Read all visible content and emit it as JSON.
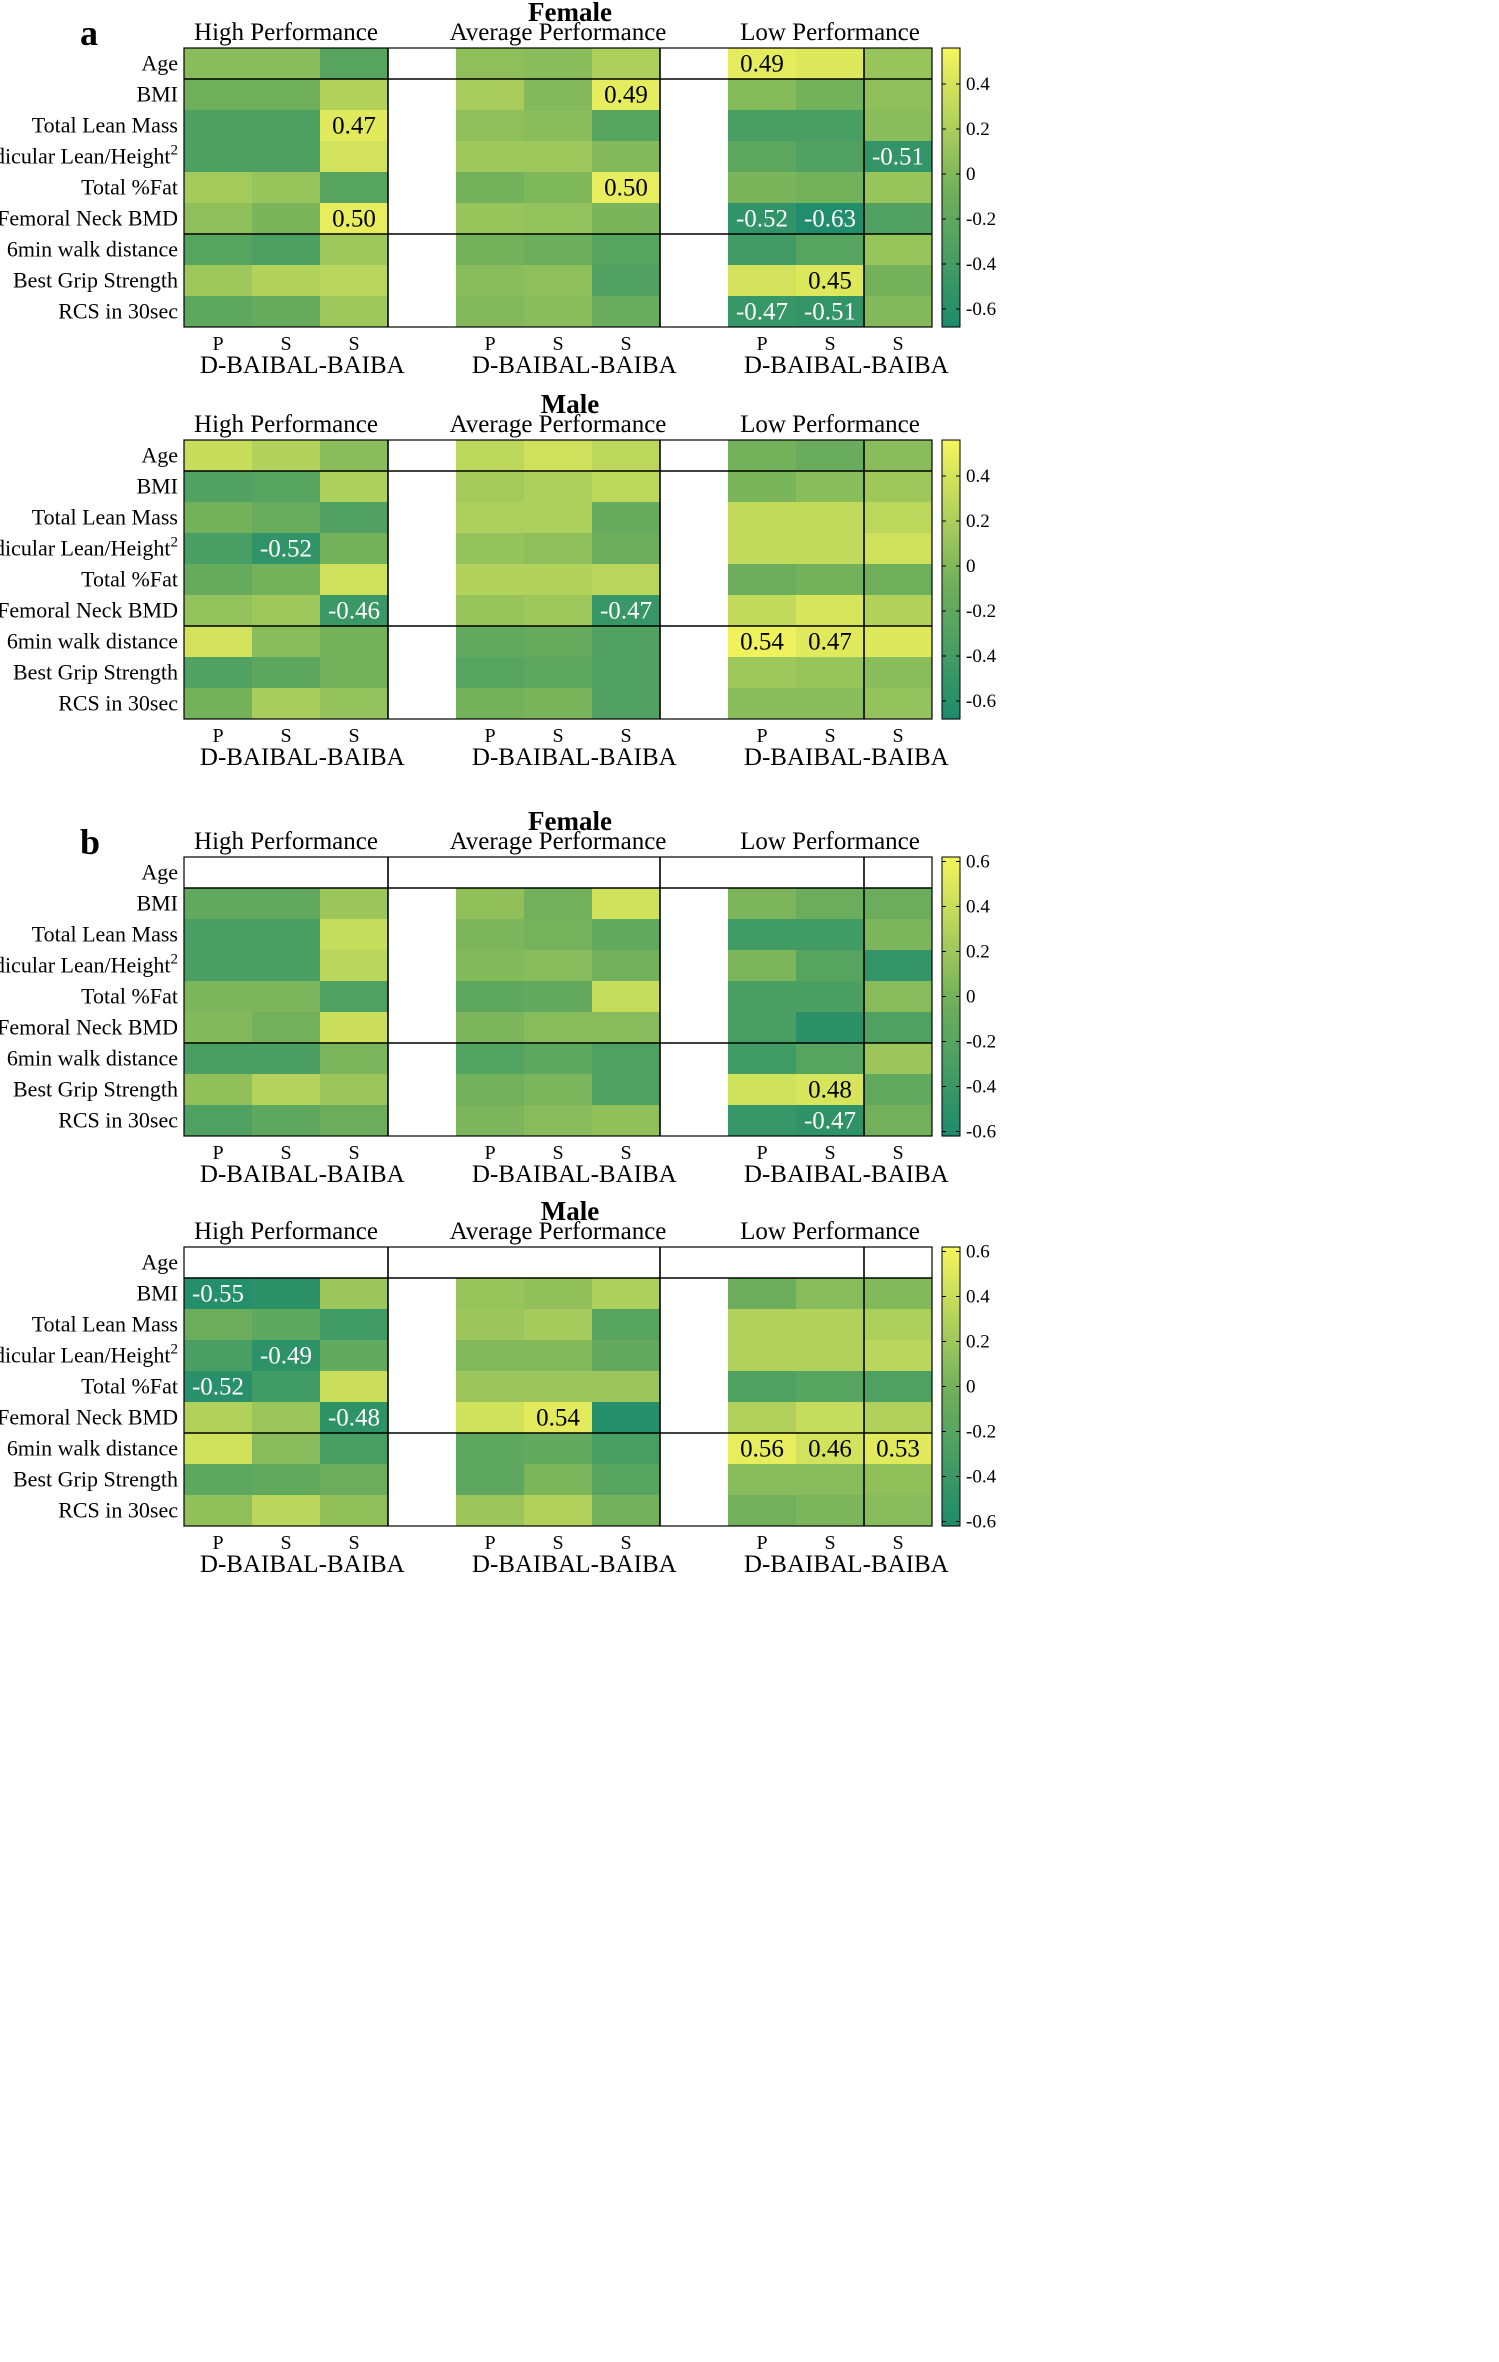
{
  "palette": {
    "cmin": "#1b8a6c",
    "cmid": "#72b05b",
    "cmax": "#f4f45d",
    "white": "#ffffff",
    "line": "#000000"
  },
  "chart_data": [
    {
      "type": "heatmap",
      "panel_letter": "a",
      "title": "Female",
      "performance_groups": [
        "High Performance",
        "Average  Performance",
        "Low  Performance"
      ],
      "row_labels": [
        "Age",
        "BMI",
        "Total Lean Mass",
        "Apendicular Lean/Height",
        "Total %Fat",
        "Femoral Neck BMD",
        "6min walk distance",
        "Best Grip Strength",
        "RCS in 30sec"
      ],
      "row_label_superscripts": [
        "",
        "",
        "",
        "2",
        "",
        "",
        "",
        "",
        ""
      ],
      "column_top_labels": [
        "P",
        "S",
        "S",
        "P",
        "S",
        "S",
        "P",
        "S",
        "S"
      ],
      "column_group_labels": [
        "D-BAIBA",
        "L-BAIBA",
        "D-BAIBA",
        "L-BAIBA",
        "D-BAIBA",
        "L-BAIBA"
      ],
      "colorbar_range": [
        -0.68,
        0.56
      ],
      "colorbar_ticks": [
        -0.6,
        -0.4,
        -0.2,
        0,
        0.2,
        0.4
      ],
      "values": [
        [
          0.05,
          0.05,
          -0.25,
          0.08,
          0.05,
          0.22,
          0.49,
          0.45,
          0.12
        ],
        [
          -0.08,
          -0.08,
          0.25,
          0.2,
          0.02,
          0.49,
          0.03,
          -0.05,
          0.08
        ],
        [
          -0.32,
          -0.32,
          0.47,
          0.08,
          0.05,
          -0.25,
          -0.35,
          -0.35,
          0.05
        ],
        [
          -0.32,
          -0.32,
          0.4,
          0.15,
          0.15,
          0.02,
          -0.2,
          -0.3,
          -0.51
        ],
        [
          0.18,
          0.12,
          -0.25,
          -0.05,
          0.0,
          0.5,
          -0.02,
          -0.05,
          0.12
        ],
        [
          0.08,
          -0.02,
          0.5,
          0.12,
          0.1,
          -0.02,
          -0.52,
          -0.63,
          -0.3
        ],
        [
          -0.25,
          -0.32,
          0.15,
          -0.05,
          -0.1,
          -0.25,
          -0.4,
          -0.25,
          0.12
        ],
        [
          0.15,
          0.25,
          0.28,
          0.05,
          0.08,
          -0.3,
          0.4,
          0.45,
          -0.05
        ],
        [
          -0.2,
          -0.15,
          0.15,
          0.02,
          0.05,
          -0.12,
          -0.47,
          -0.51,
          0.02
        ]
      ],
      "labels": [
        [
          "",
          "",
          "",
          "",
          "",
          "",
          "0.49",
          "",
          ""
        ],
        [
          "",
          "",
          "",
          "",
          "",
          "0.49",
          "",
          "",
          ""
        ],
        [
          "",
          "",
          "0.47",
          "",
          "",
          "",
          "",
          "",
          ""
        ],
        [
          "",
          "",
          "",
          "",
          "",
          "",
          "",
          "",
          "-0.51"
        ],
        [
          "",
          "",
          "",
          "",
          "",
          "0.50",
          "",
          "",
          ""
        ],
        [
          "",
          "",
          "0.50",
          "",
          "",
          "",
          "-0.52",
          "-0.63",
          ""
        ],
        [
          "",
          "",
          "",
          "",
          "",
          "",
          "",
          "",
          ""
        ],
        [
          "",
          "",
          "",
          "",
          "",
          "",
          "",
          "0.45",
          ""
        ],
        [
          "",
          "",
          "",
          "",
          "",
          "",
          "-0.47",
          "-0.51",
          ""
        ]
      ]
    },
    {
      "type": "heatmap",
      "panel_letter": "",
      "title": "Male",
      "performance_groups": [
        "High Performance",
        "Average  Performance",
        "Low  Performance"
      ],
      "row_labels": [
        "Age",
        "BMI",
        "Total Lean Mass",
        "Apendicular Lean/Height",
        "Total %Fat",
        "Femoral Neck BMD",
        "6min walk distance",
        "Best Grip Strength",
        "RCS in 30sec"
      ],
      "row_label_superscripts": [
        "",
        "",
        "",
        "2",
        "",
        "",
        "",
        "",
        ""
      ],
      "column_top_labels": [
        "P",
        "S",
        "S",
        "P",
        "S",
        "S",
        "P",
        "S",
        "S"
      ],
      "column_group_labels": [
        "D-BAIBA",
        "L-BAIBA",
        "D-BAIBA",
        "L-BAIBA",
        "D-BAIBA",
        "L-BAIBA"
      ],
      "colorbar_range": [
        -0.68,
        0.56
      ],
      "colorbar_ticks": [
        -0.6,
        -0.4,
        -0.2,
        0,
        0.2,
        0.4
      ],
      "values": [
        [
          0.35,
          0.25,
          0.05,
          0.3,
          0.38,
          0.3,
          -0.05,
          -0.12,
          0.05
        ],
        [
          -0.3,
          -0.25,
          0.22,
          0.18,
          0.22,
          0.3,
          -0.02,
          0.05,
          0.15
        ],
        [
          -0.05,
          -0.12,
          -0.3,
          0.22,
          0.22,
          -0.15,
          0.32,
          0.32,
          0.3
        ],
        [
          -0.35,
          -0.52,
          -0.05,
          0.1,
          0.08,
          -0.1,
          0.32,
          0.32,
          0.38
        ],
        [
          -0.15,
          -0.05,
          0.38,
          0.25,
          0.25,
          0.28,
          -0.1,
          -0.05,
          -0.08
        ],
        [
          0.1,
          0.15,
          -0.46,
          0.12,
          0.15,
          -0.47,
          0.32,
          0.42,
          0.25
        ],
        [
          0.4,
          0.05,
          -0.05,
          -0.18,
          -0.15,
          -0.3,
          0.54,
          0.47,
          0.45
        ],
        [
          -0.3,
          -0.22,
          -0.05,
          -0.25,
          -0.2,
          -0.3,
          0.15,
          0.12,
          0.05
        ],
        [
          -0.05,
          0.2,
          0.1,
          -0.05,
          -0.02,
          -0.3,
          0.05,
          0.05,
          0.1
        ]
      ],
      "labels": [
        [
          "",
          "",
          "",
          "",
          "",
          "",
          "",
          "",
          ""
        ],
        [
          "",
          "",
          "",
          "",
          "",
          "",
          "",
          "",
          ""
        ],
        [
          "",
          "",
          "",
          "",
          "",
          "",
          "",
          "",
          ""
        ],
        [
          "",
          "-0.52",
          "",
          "",
          "",
          "",
          "",
          "",
          ""
        ],
        [
          "",
          "",
          "",
          "",
          "",
          "",
          "",
          "",
          ""
        ],
        [
          "",
          "",
          "-0.46",
          "",
          "",
          "-0.47",
          "",
          "",
          ""
        ],
        [
          "",
          "",
          "",
          "",
          "",
          "",
          "0.54",
          "0.47",
          ""
        ],
        [
          "",
          "",
          "",
          "",
          "",
          "",
          "",
          "",
          ""
        ],
        [
          "",
          "",
          "",
          "",
          "",
          "",
          "",
          "",
          ""
        ]
      ]
    },
    {
      "type": "heatmap",
      "panel_letter": "b",
      "title": "Female",
      "performance_groups": [
        "High Performance",
        "Average  Performance",
        "Low  Performance"
      ],
      "row_labels": [
        "Age",
        "BMI",
        "Total Lean Mass",
        "Apendicular Lean/Height",
        "Total %Fat",
        "Femoral Neck BMD",
        "6min walk distance",
        "Best Grip Strength",
        "RCS in 30sec"
      ],
      "row_label_superscripts": [
        "",
        "",
        "",
        "2",
        "",
        "",
        "",
        "",
        ""
      ],
      "column_top_labels": [
        "P",
        "S",
        "S",
        "P",
        "S",
        "S",
        "P",
        "S",
        "S"
      ],
      "column_group_labels": [
        "D-BAIBA",
        "L-BAIBA",
        "D-BAIBA",
        "L-BAIBA",
        "D-BAIBA",
        "L-BAIBA"
      ],
      "colorbar_range": [
        -0.62,
        0.62
      ],
      "colorbar_ticks": [
        -0.6,
        -0.4,
        -0.2,
        0,
        0.2,
        0.4,
        0.6
      ],
      "values": [
        [
          null,
          null,
          null,
          null,
          null,
          null,
          null,
          null,
          null
        ],
        [
          -0.12,
          -0.12,
          0.2,
          0.15,
          0.0,
          0.45,
          0.05,
          -0.05,
          -0.05
        ],
        [
          -0.3,
          -0.3,
          0.4,
          0.05,
          0.02,
          -0.12,
          -0.35,
          -0.35,
          0.05
        ],
        [
          -0.3,
          -0.3,
          0.35,
          0.08,
          0.1,
          0.0,
          0.05,
          -0.2,
          -0.45
        ],
        [
          0.05,
          0.05,
          -0.25,
          -0.15,
          -0.1,
          0.4,
          -0.3,
          -0.28,
          0.1
        ],
        [
          0.08,
          0.0,
          0.42,
          0.05,
          0.1,
          0.1,
          -0.3,
          -0.5,
          -0.25
        ],
        [
          -0.28,
          -0.28,
          0.05,
          -0.22,
          -0.15,
          -0.25,
          -0.35,
          -0.2,
          0.2
        ],
        [
          0.15,
          0.32,
          0.2,
          0.0,
          0.05,
          -0.25,
          0.45,
          0.48,
          -0.12
        ],
        [
          -0.25,
          -0.15,
          -0.05,
          0.05,
          0.1,
          0.15,
          -0.42,
          -0.47,
          0.0
        ]
      ],
      "labels": [
        [
          "",
          "",
          "",
          "",
          "",
          "",
          "",
          "",
          ""
        ],
        [
          "",
          "",
          "",
          "",
          "",
          "",
          "",
          "",
          ""
        ],
        [
          "",
          "",
          "",
          "",
          "",
          "",
          "",
          "",
          ""
        ],
        [
          "",
          "",
          "",
          "",
          "",
          "",
          "",
          "",
          ""
        ],
        [
          "",
          "",
          "",
          "",
          "",
          "",
          "",
          "",
          ""
        ],
        [
          "",
          "",
          "",
          "",
          "",
          "",
          "",
          "",
          ""
        ],
        [
          "",
          "",
          "",
          "",
          "",
          "",
          "",
          "",
          ""
        ],
        [
          "",
          "",
          "",
          "",
          "",
          "",
          "",
          "0.48",
          ""
        ],
        [
          "",
          "",
          "",
          "",
          "",
          "",
          "",
          "-0.47",
          ""
        ]
      ]
    },
    {
      "type": "heatmap",
      "panel_letter": "",
      "title": "Male",
      "performance_groups": [
        "High Performance",
        "Average  Performance",
        "Low  Performance"
      ],
      "row_labels": [
        "Age",
        "BMI",
        "Total Lean Mass",
        "Apendicular Lean/Height",
        "Total %Fat",
        "Femoral Neck BMD",
        "6min walk distance",
        "Best Grip Strength",
        "RCS in 30sec"
      ],
      "row_label_superscripts": [
        "",
        "",
        "",
        "2",
        "",
        "",
        "",
        "",
        ""
      ],
      "column_top_labels": [
        "P",
        "S",
        "S",
        "P",
        "S",
        "S",
        "P",
        "S",
        "S"
      ],
      "column_group_labels": [
        "D-BAIBA",
        "L-BAIBA",
        "D-BAIBA",
        "L-BAIBA",
        "D-BAIBA",
        "L-BAIBA"
      ],
      "colorbar_range": [
        -0.62,
        0.62
      ],
      "colorbar_ticks": [
        -0.6,
        -0.4,
        -0.2,
        0,
        0.2,
        0.4,
        0.6
      ],
      "values": [
        [
          null,
          null,
          null,
          null,
          null,
          null,
          null,
          null,
          null
        ],
        [
          -0.55,
          -0.5,
          0.2,
          0.18,
          0.15,
          0.28,
          -0.05,
          0.1,
          0.08
        ],
        [
          -0.05,
          -0.15,
          -0.35,
          0.2,
          0.25,
          -0.2,
          0.3,
          0.3,
          0.28
        ],
        [
          -0.3,
          -0.49,
          -0.1,
          0.08,
          0.08,
          -0.1,
          0.3,
          0.3,
          0.35
        ],
        [
          -0.52,
          -0.35,
          0.42,
          0.2,
          0.2,
          0.2,
          -0.25,
          -0.2,
          -0.25
        ],
        [
          0.3,
          0.2,
          -0.48,
          0.45,
          0.54,
          -0.55,
          0.3,
          0.4,
          0.3
        ],
        [
          0.45,
          0.1,
          -0.3,
          -0.15,
          -0.1,
          -0.3,
          0.56,
          0.46,
          0.53
        ],
        [
          -0.15,
          -0.12,
          -0.05,
          -0.15,
          0.05,
          -0.2,
          0.1,
          0.1,
          0.15
        ],
        [
          0.15,
          0.35,
          0.15,
          0.2,
          0.3,
          0.0,
          0.0,
          0.05,
          0.1
        ]
      ],
      "labels": [
        [
          "",
          "",
          "",
          "",
          "",
          "",
          "",
          "",
          ""
        ],
        [
          "-0.55",
          "",
          "",
          "",
          "",
          "",
          "",
          "",
          ""
        ],
        [
          "",
          "",
          "",
          "",
          "",
          "",
          "",
          "",
          ""
        ],
        [
          "",
          "-0.49",
          "",
          "",
          "",
          "",
          "",
          "",
          ""
        ],
        [
          "-0.52",
          "",
          "",
          "",
          "",
          "",
          "",
          "",
          ""
        ],
        [
          "",
          "",
          "-0.48",
          "",
          "0.54",
          "",
          "",
          "",
          ""
        ],
        [
          "",
          "",
          "",
          "",
          "",
          "",
          "0.56",
          "0.46",
          "0.53"
        ],
        [
          "",
          "",
          "",
          "",
          "",
          "",
          "",
          "",
          ""
        ],
        [
          "",
          "",
          "",
          "",
          "",
          "",
          "",
          "",
          ""
        ]
      ]
    }
  ]
}
